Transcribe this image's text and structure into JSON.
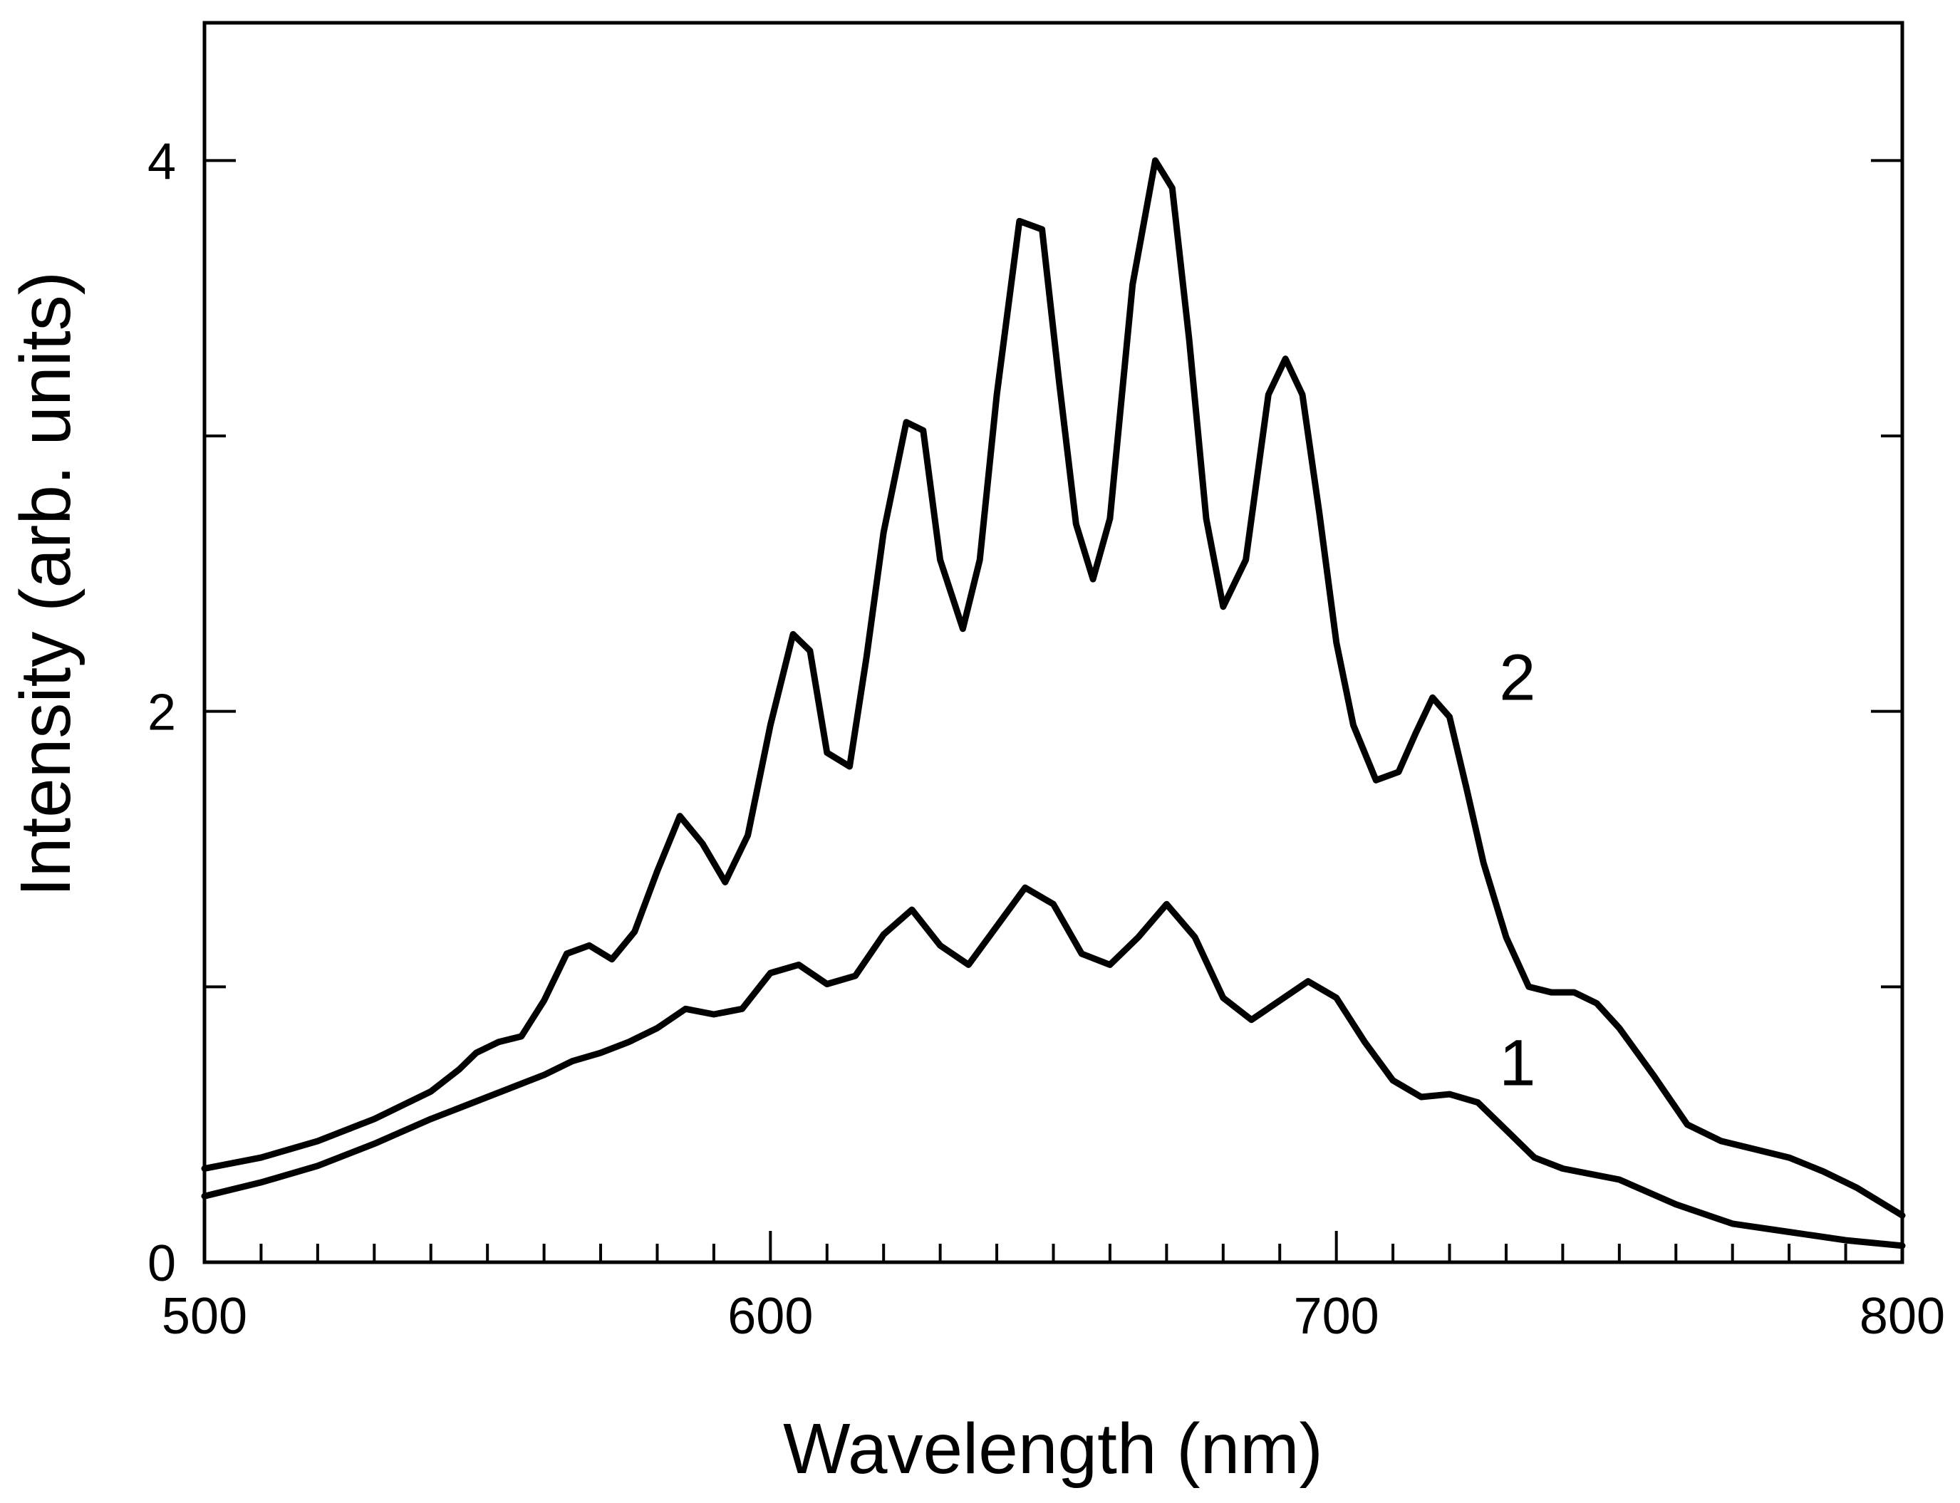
{
  "chart_data": {
    "type": "line",
    "title": "",
    "xlabel": "Wavelength (nm)",
    "ylabel": "Intensity (arb. units)",
    "xlim": [
      500,
      800
    ],
    "ylim": [
      0,
      4.5
    ],
    "xticks": [
      500,
      600,
      700,
      800
    ],
    "xtick_labels": [
      "500",
      "600",
      "700",
      "800"
    ],
    "yticks": [
      0,
      2,
      4
    ],
    "ytick_labels": [
      "0",
      "2",
      "4"
    ],
    "x_minor_step": 10,
    "y_minor_step": 1,
    "grid": false,
    "legend": "none",
    "series": [
      {
        "name": "1",
        "label_position": {
          "x": 732,
          "y": 0.72
        },
        "x": [
          500,
          510,
          520,
          530,
          540,
          545,
          550,
          555,
          560,
          565,
          570,
          575,
          580,
          585,
          590,
          595,
          600,
          605,
          610,
          615,
          620,
          625,
          630,
          635,
          640,
          645,
          650,
          655,
          660,
          665,
          670,
          675,
          680,
          685,
          690,
          695,
          700,
          705,
          710,
          715,
          720,
          725,
          730,
          735,
          740,
          750,
          760,
          770,
          780,
          790,
          800
        ],
        "values": [
          0.24,
          0.29,
          0.35,
          0.43,
          0.52,
          0.56,
          0.6,
          0.64,
          0.68,
          0.73,
          0.76,
          0.8,
          0.85,
          0.92,
          0.9,
          0.92,
          1.05,
          1.08,
          1.01,
          1.04,
          1.19,
          1.28,
          1.15,
          1.08,
          1.22,
          1.36,
          1.3,
          1.12,
          1.08,
          1.18,
          1.3,
          1.18,
          0.96,
          0.88,
          0.95,
          1.02,
          0.96,
          0.8,
          0.66,
          0.6,
          0.61,
          0.58,
          0.48,
          0.38,
          0.34,
          0.3,
          0.21,
          0.14,
          0.11,
          0.08,
          0.06
        ]
      },
      {
        "name": "2",
        "label_position": {
          "x": 732,
          "y": 2.12
        },
        "x": [
          500,
          510,
          520,
          530,
          540,
          545,
          548,
          552,
          556,
          560,
          564,
          568,
          572,
          576,
          580,
          584,
          588,
          592,
          596,
          600,
          604,
          607,
          610,
          614,
          617,
          620,
          624,
          627,
          630,
          634,
          637,
          640,
          644,
          648,
          651,
          654,
          657,
          660,
          664,
          668,
          671,
          674,
          677,
          680,
          684,
          688,
          691,
          694,
          697,
          700,
          703,
          707,
          711,
          714,
          717,
          720,
          723,
          726,
          730,
          734,
          738,
          742,
          746,
          750,
          756,
          762,
          768,
          774,
          780,
          786,
          792,
          800
        ],
        "values": [
          0.34,
          0.38,
          0.44,
          0.52,
          0.62,
          0.7,
          0.76,
          0.8,
          0.82,
          0.95,
          1.12,
          1.15,
          1.1,
          1.2,
          1.42,
          1.62,
          1.52,
          1.38,
          1.55,
          1.95,
          2.28,
          2.22,
          1.85,
          1.8,
          2.2,
          2.65,
          3.05,
          3.02,
          2.55,
          2.3,
          2.55,
          3.15,
          3.78,
          3.75,
          3.2,
          2.68,
          2.48,
          2.7,
          3.55,
          4.0,
          3.9,
          3.35,
          2.7,
          2.38,
          2.55,
          3.15,
          3.28,
          3.15,
          2.72,
          2.25,
          1.95,
          1.75,
          1.78,
          1.92,
          2.05,
          1.98,
          1.72,
          1.45,
          1.18,
          1.0,
          0.98,
          0.98,
          0.94,
          0.85,
          0.68,
          0.5,
          0.44,
          0.41,
          0.38,
          0.33,
          0.27,
          0.17
        ]
      }
    ]
  }
}
